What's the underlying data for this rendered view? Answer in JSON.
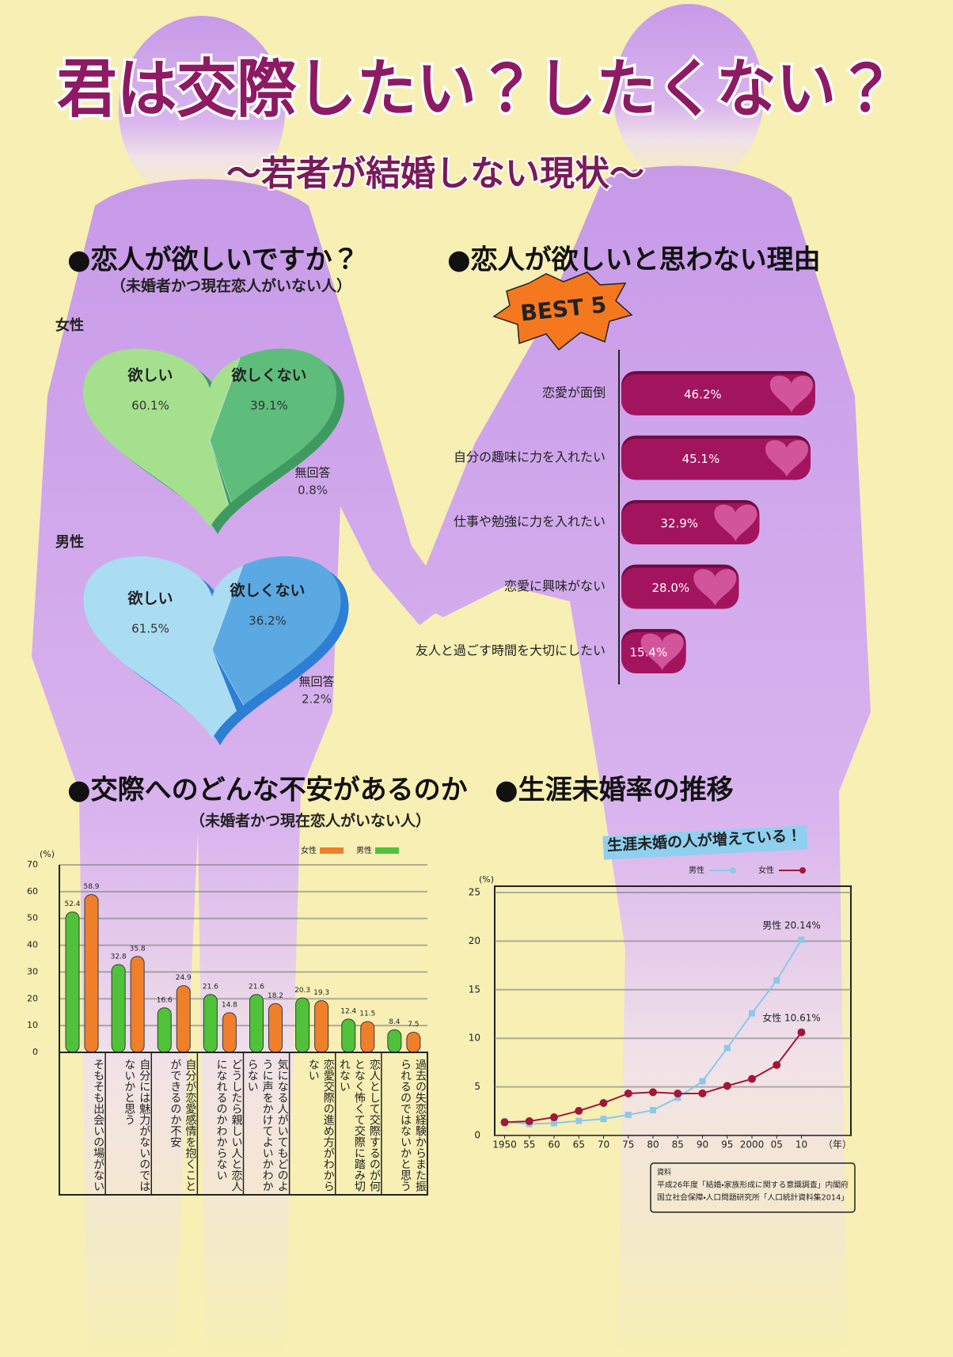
{
  "poster": {
    "title": "君は交際したい？したくない？",
    "subtitle": "～若者が結婚しない現状～"
  },
  "chart_data": [
    {
      "type": "pie",
      "title": "●恋人が欲しいですか？",
      "subtitle": "（未婚者かつ現在恋人がいない人）",
      "label": "女性",
      "categories": [
        "欲しい",
        "欲しくない",
        "無回答"
      ],
      "values": [
        60.1,
        39.1,
        0.8
      ],
      "value_labels": [
        "60.1%",
        "39.1%",
        "0.8%"
      ],
      "colors": [
        "#a5e08e",
        "#5fbd7c",
        "#3f9a62"
      ]
    },
    {
      "type": "pie",
      "label": "男性",
      "categories": [
        "欲しい",
        "欲しくない",
        "無回答"
      ],
      "values": [
        61.5,
        36.2,
        2.2
      ],
      "value_labels": [
        "61.5%",
        "36.2%",
        "2.2%"
      ],
      "colors": [
        "#aadcf2",
        "#5ba9e3",
        "#2d7fd3"
      ]
    },
    {
      "type": "hbar",
      "title": "●恋人が欲しいと思わない理由",
      "badge": "BEST 5",
      "categories": [
        "恋愛が面倒",
        "自分の趣味に力を入れたい",
        "仕事や勉強に力を入れたい",
        "恋愛に興味がない",
        "友人と過ごす時間を大切にしたい"
      ],
      "values": [
        46.2,
        45.1,
        32.9,
        28.0,
        15.4
      ],
      "value_labels": [
        "46.2%",
        "45.1%",
        "32.9%",
        "28.0%",
        "15.4%"
      ],
      "color": "#a3145f"
    },
    {
      "type": "bar",
      "title": "●交際へのどんな不安があるのか",
      "subtitle": "（未婚者かつ現在恋人がいない人）",
      "y_label": "(%)",
      "categories": [
        "そもそも出会いの場がない",
        "自分には魅力がないのではないかと思う",
        "自分が恋愛感情を抱くことができるのか不安",
        "どうしたら親しい人と恋人になれるのかわからない",
        "気になる人がいてもどのように声をかけてよいかわからない",
        "恋愛交際の進め方がわからない",
        "恋人として交際するのが何となく怖くて交際に踏み切れない",
        "過去の失恋経験からまた振られるのではないかと思う"
      ],
      "series": [
        {
          "name": "男性",
          "color": "#4fc23a",
          "values": [
            52.4,
            32.8,
            16.6,
            21.6,
            21.6,
            20.3,
            12.4,
            8.4
          ]
        },
        {
          "name": "女性",
          "color": "#f07f2a",
          "values": [
            58.9,
            35.8,
            24.9,
            14.8,
            18.2,
            19.3,
            11.5,
            7.5
          ]
        }
      ],
      "ylim": [
        0,
        70
      ],
      "yticks": [
        0,
        10,
        20,
        30,
        40,
        50,
        60,
        70
      ],
      "grid": true
    },
    {
      "type": "line",
      "title": "●生涯未婚率の推移",
      "annotation": "生涯未婚の人が増えている！",
      "y_label": "(%)",
      "x_label": "（年）",
      "x": [
        1950,
        1955,
        1960,
        1965,
        1970,
        1975,
        1980,
        1985,
        1990,
        1995,
        2000,
        2005,
        2010
      ],
      "series": [
        {
          "name": "男性",
          "color": "#8cc8ea",
          "values": [
            1.45,
            1.18,
            1.26,
            1.5,
            1.7,
            2.12,
            2.6,
            3.89,
            5.57,
            8.99,
            12.57,
            15.96,
            20.14
          ]
        },
        {
          "name": "女性",
          "color": "#a01838",
          "values": [
            1.35,
            1.47,
            1.87,
            2.53,
            3.34,
            4.32,
            4.45,
            4.32,
            4.33,
            5.1,
            5.82,
            7.25,
            10.61
          ]
        }
      ],
      "xlim": [
        1948,
        2020
      ],
      "xticks": [
        1950,
        {
          "value": 1955,
          "label": "55"
        },
        {
          "value": 1960,
          "label": "60"
        },
        {
          "value": 1965,
          "label": "65"
        },
        {
          "value": 1970,
          "label": "70"
        },
        {
          "value": 1975,
          "label": "75"
        },
        {
          "value": 1980,
          "label": "80"
        },
        {
          "value": 1985,
          "label": "85"
        },
        {
          "value": 1990,
          "label": "90"
        },
        {
          "value": 1995,
          "label": "95"
        },
        2000,
        {
          "value": 2005,
          "label": "05"
        },
        {
          "value": 2010,
          "label": "10"
        }
      ],
      "ylim": [
        0,
        25
      ],
      "yticks": [
        0,
        5,
        10,
        15,
        20,
        25
      ],
      "grid": true,
      "annotations": [
        "男性 20.14%",
        "女性 10.61%"
      ],
      "source": [
        "資料",
        "平成26年度「結婚・家族形成に関する意識調査」内閣府",
        "国立社会保障・人口問題研究所「人口統計資料集2014」"
      ]
    }
  ]
}
